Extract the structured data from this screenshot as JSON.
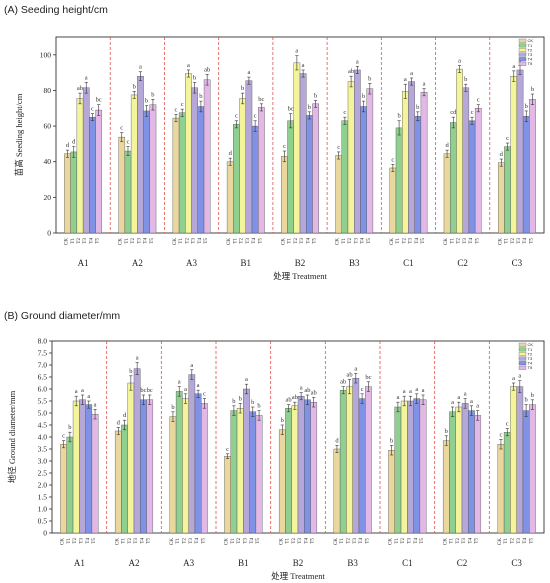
{
  "series_colors": {
    "CK": "#e9d79d",
    "T1": "#8fcf8f",
    "T2": "#f4f49a",
    "T3": "#b6a7d9",
    "T4": "#7f92e5",
    "T5": "#e2b8e6"
  },
  "chart_data": [
    {
      "type": "bar",
      "title": "(A) Seeding height/cm",
      "xlabel": "处理 Treatment",
      "ylabel": "苗高 Seeding height/cm",
      "ylim": [
        0,
        110
      ],
      "yticks": [
        0,
        20,
        40,
        60,
        80,
        100
      ],
      "grid": false,
      "legend_position": "top-right",
      "groups": [
        "A1",
        "A2",
        "A3",
        "B1",
        "B2",
        "B3",
        "C1",
        "C2",
        "C3"
      ],
      "series_names": [
        "CK",
        "T1",
        "T2",
        "T3",
        "T4",
        "T5"
      ],
      "bar_tick_labels": [
        "CK",
        "T1",
        "T2",
        "T3",
        "T4",
        "T5"
      ],
      "series": [
        {
          "name": "CK",
          "values": [
            44.5,
            53.8,
            64.5,
            40.0,
            43.0,
            43.5,
            36.5,
            44.5,
            39.5
          ],
          "errors": [
            2.0,
            2.5,
            2.0,
            2.0,
            3.0,
            2.0,
            2.0,
            2.0,
            2.0
          ],
          "labels": [
            "d",
            "c",
            "c",
            "d",
            "c",
            "c",
            "c",
            "d",
            "d"
          ]
        },
        {
          "name": "T1",
          "values": [
            45.5,
            46.0,
            67.5,
            61.0,
            63.0,
            63.0,
            59.0,
            62.0,
            48.5
          ],
          "errors": [
            3.0,
            2.5,
            2.0,
            2.0,
            4.0,
            2.0,
            4.0,
            3.0,
            2.0
          ],
          "labels": [
            "d",
            "c",
            "c",
            "c",
            "bc",
            "c",
            "b",
            "cd",
            "c"
          ]
        },
        {
          "name": "T2",
          "values": [
            75.5,
            77.5,
            89.5,
            75.5,
            95.5,
            85.0,
            79.5,
            92.0,
            88.0
          ],
          "errors": [
            3.0,
            2.0,
            2.0,
            3.0,
            4.0,
            3.0,
            4.0,
            2.0,
            3.0
          ],
          "labels": [
            "ab",
            "b",
            "a",
            "b",
            "a",
            "ab",
            "a",
            "a",
            "a"
          ]
        },
        {
          "name": "T3",
          "values": [
            81.5,
            88.0,
            81.5,
            85.5,
            89.5,
            91.5,
            85.0,
            81.5,
            91.5
          ],
          "errors": [
            3.0,
            2.5,
            3.0,
            2.0,
            2.0,
            2.0,
            2.0,
            2.0,
            2.5
          ],
          "labels": [
            "a",
            "a",
            "b",
            "a",
            "a",
            "a",
            "a",
            "b",
            "a"
          ]
        },
        {
          "name": "T4",
          "values": [
            65.0,
            68.5,
            71.0,
            60.0,
            66.0,
            71.0,
            65.5,
            63.0,
            65.5
          ],
          "errors": [
            2.0,
            3.0,
            3.0,
            3.0,
            2.0,
            3.0,
            2.5,
            2.0,
            3.0
          ],
          "labels": [
            "c",
            "b",
            "b",
            "c",
            "b",
            "b",
            "b",
            "c",
            "b"
          ]
        },
        {
          "name": "T5",
          "values": [
            69.0,
            72.0,
            86.0,
            70.5,
            72.5,
            81.0,
            79.0,
            70.0,
            75.0
          ],
          "errors": [
            3.0,
            3.0,
            3.0,
            2.0,
            2.0,
            3.0,
            2.0,
            2.0,
            3.0
          ],
          "labels": [
            "bc",
            "b",
            "ab",
            "bc",
            "b",
            "b",
            "a",
            "c",
            "b"
          ]
        }
      ]
    },
    {
      "type": "bar",
      "title": "(B) Ground diameter/mm",
      "xlabel": "处理 Treatment",
      "ylabel": "地径 Ground diameter/mm",
      "ylim": [
        0,
        8.0
      ],
      "yticks": [
        "0",
        "0.5",
        "1.0",
        "1.5",
        "2.0",
        "2.5",
        "3.0",
        "3.5",
        "4.0",
        "4.5",
        "5.0",
        "5.5",
        "6.0",
        "6.5",
        "7.0",
        "7.5",
        "8.0"
      ],
      "grid": false,
      "legend_position": "top-right",
      "groups": [
        "A1",
        "A2",
        "A3",
        "B1",
        "B2",
        "B3",
        "C1",
        "C2",
        "C3"
      ],
      "series_names": [
        "CK",
        "T1",
        "T2",
        "T3",
        "T4",
        "T5"
      ],
      "bar_tick_labels": [
        "CK",
        "T1",
        "T2",
        "T3",
        "T4",
        "T5"
      ],
      "series": [
        {
          "name": "CK",
          "values": [
            3.7,
            4.25,
            4.85,
            3.2,
            4.3,
            3.5,
            3.45,
            3.85,
            3.7
          ],
          "errors": [
            0.15,
            0.15,
            0.2,
            0.1,
            0.2,
            0.15,
            0.2,
            0.2,
            0.2
          ],
          "labels": [
            "c",
            "d",
            "b",
            "c",
            "b",
            "d",
            "b",
            "b",
            "c"
          ]
        },
        {
          "name": "T1",
          "values": [
            4.0,
            4.5,
            5.9,
            5.1,
            5.2,
            5.95,
            5.25,
            5.05,
            4.2
          ],
          "errors": [
            0.2,
            0.2,
            0.2,
            0.2,
            0.15,
            0.15,
            0.2,
            0.2,
            0.15
          ],
          "labels": [
            "b",
            "d",
            "a",
            "b",
            "ab",
            "ab",
            "a",
            "a",
            "c"
          ]
        },
        {
          "name": "T2",
          "values": [
            5.5,
            6.25,
            5.6,
            5.2,
            5.3,
            6.1,
            5.5,
            5.25,
            6.1
          ],
          "errors": [
            0.2,
            0.3,
            0.2,
            0.2,
            0.15,
            0.3,
            0.2,
            0.2,
            0.15
          ],
          "labels": [
            "a",
            "b",
            "a",
            "b",
            "ab",
            "ab",
            "a",
            "a",
            "a"
          ]
        },
        {
          "name": "T3",
          "values": [
            5.55,
            6.85,
            6.6,
            6.0,
            5.7,
            6.45,
            5.5,
            5.4,
            6.1
          ],
          "errors": [
            0.2,
            0.25,
            0.2,
            0.2,
            0.15,
            0.2,
            0.2,
            0.2,
            0.25
          ],
          "labels": [
            "a",
            "a",
            "a",
            "a",
            "a",
            "a",
            "a",
            "a",
            "a"
          ]
        },
        {
          "name": "T4",
          "values": [
            5.35,
            5.55,
            5.8,
            5.05,
            5.55,
            5.6,
            5.6,
            5.1,
            5.1
          ],
          "errors": [
            0.15,
            0.2,
            0.15,
            0.2,
            0.2,
            0.2,
            0.2,
            0.2,
            0.25
          ],
          "labels": [
            "a",
            "bc",
            "a",
            "b",
            "ab",
            "c",
            "a",
            "a",
            "b"
          ]
        },
        {
          "name": "T5",
          "values": [
            4.95,
            5.55,
            5.4,
            4.9,
            5.45,
            6.1,
            5.55,
            4.9,
            5.35
          ],
          "errors": [
            0.2,
            0.2,
            0.2,
            0.2,
            0.2,
            0.2,
            0.2,
            0.2,
            0.2
          ],
          "labels": [
            "a",
            "bc",
            "c",
            "b",
            "ab",
            "bc",
            "a",
            "a",
            "b"
          ]
        }
      ]
    }
  ]
}
